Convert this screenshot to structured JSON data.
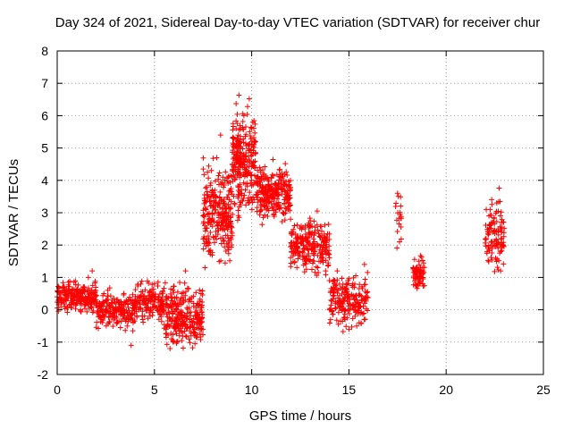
{
  "chart_data": {
    "type": "scatter",
    "title": "Day 324 of 2021, Sidereal Day-to-day VTEC variation (SDTVAR) for receiver chur",
    "xlabel": "GPS time / hours",
    "ylabel": "SDTVAR / TECUs",
    "xlim": [
      0,
      25
    ],
    "ylim": [
      -2,
      8
    ],
    "x_ticks": [
      0,
      5,
      10,
      15,
      20,
      25
    ],
    "y_ticks": [
      -2,
      -1,
      0,
      1,
      2,
      3,
      4,
      5,
      6,
      7,
      8
    ],
    "grid": true,
    "marker": "plus",
    "series": [
      {
        "name": "SDTVAR",
        "color": "#ff0000",
        "x": [
          0.0,
          0.2,
          0.4,
          0.6,
          0.8,
          1.0,
          1.2,
          1.4,
          1.6,
          1.8,
          2.0,
          2.2,
          2.4,
          2.6,
          2.8,
          3.0,
          3.2,
          3.4,
          3.6,
          3.8,
          4.0,
          4.2,
          4.4,
          4.6,
          4.8,
          5.0,
          5.2,
          5.4,
          5.6,
          5.8,
          6.0,
          6.2,
          6.4,
          6.6,
          6.8,
          7.0,
          7.2,
          7.4,
          7.6,
          7.8,
          8.0,
          8.2,
          8.4,
          8.6,
          8.8,
          9.0,
          9.2,
          9.4,
          9.6,
          9.8,
          10.0,
          10.2,
          10.4,
          10.6,
          10.8,
          11.0,
          11.2,
          11.4,
          11.6,
          11.8,
          12.0,
          12.2,
          12.4,
          12.6,
          12.8,
          13.0,
          13.2,
          13.4,
          13.6,
          13.8,
          14.0,
          14.2,
          14.4,
          14.6,
          14.8,
          15.0,
          15.2,
          15.4,
          15.6,
          15.8,
          17.5,
          17.6,
          18.4,
          18.6,
          18.8,
          22.2,
          22.4,
          22.6,
          22.8
        ],
        "y": [
          0.4,
          0.3,
          0.1,
          0.6,
          0.3,
          0.2,
          0.0,
          0.7,
          1.0,
          1.2,
          0.3,
          0.1,
          0.5,
          0.6,
          0.2,
          0.0,
          0.1,
          -0.2,
          -0.5,
          -1.1,
          0.1,
          0.0,
          -0.3,
          0.0,
          0.3,
          0.8,
          0.4,
          0.0,
          -0.6,
          -1.2,
          -0.5,
          0.2,
          0.5,
          1.2,
          -0.3,
          -0.7,
          -0.4,
          0.5,
          1.3,
          2.8,
          3.5,
          4.7,
          5.4,
          3.3,
          2.8,
          4.5,
          5.6,
          5.2,
          6.0,
          5.1,
          4.0,
          5.2,
          4.4,
          3.6,
          3.2,
          3.5,
          3.9,
          3.8,
          3.0,
          3.4,
          2.8,
          2.6,
          2.2,
          1.8,
          1.5,
          2.0,
          1.5,
          1.3,
          1.6,
          1.2,
          0.9,
          0.6,
          1.2,
          0.2,
          -0.3,
          -0.6,
          0.8,
          -0.5,
          0.1,
          1.4,
          3.6,
          2.1,
          1.1,
          1.5,
          1.3,
          2.9,
          2.7,
          3.3,
          1.2
        ],
        "scatter_clouds": [
          {
            "x_range": [
              0.0,
              2.0
            ],
            "center": 0.4,
            "spread": 0.45,
            "count": 220
          },
          {
            "x_range": [
              2.0,
              4.0
            ],
            "center": 0.0,
            "spread": 0.55,
            "count": 200
          },
          {
            "x_range": [
              4.0,
              5.5
            ],
            "center": 0.2,
            "spread": 0.6,
            "count": 150
          },
          {
            "x_range": [
              5.5,
              7.5
            ],
            "center": -0.2,
            "spread": 0.9,
            "count": 260
          },
          {
            "x_range": [
              7.5,
              9.0
            ],
            "center": 3.0,
            "spread": 1.6,
            "count": 260
          },
          {
            "x_range": [
              9.0,
              10.2
            ],
            "center": 4.6,
            "spread": 1.5,
            "count": 260
          },
          {
            "x_range": [
              10.2,
              12.0
            ],
            "center": 3.6,
            "spread": 0.8,
            "count": 260
          },
          {
            "x_range": [
              12.0,
              14.0
            ],
            "center": 2.0,
            "spread": 0.8,
            "count": 240
          },
          {
            "x_range": [
              14.0,
              16.0
            ],
            "center": 0.3,
            "spread": 0.8,
            "count": 200
          },
          {
            "x_range": [
              17.4,
              17.7
            ],
            "center": 2.8,
            "spread": 0.9,
            "count": 18
          },
          {
            "x_range": [
              18.3,
              18.9
            ],
            "center": 1.1,
            "spread": 0.45,
            "count": 70
          },
          {
            "x_range": [
              22.0,
              23.0
            ],
            "center": 2.3,
            "spread": 1.1,
            "count": 110
          }
        ]
      }
    ]
  }
}
